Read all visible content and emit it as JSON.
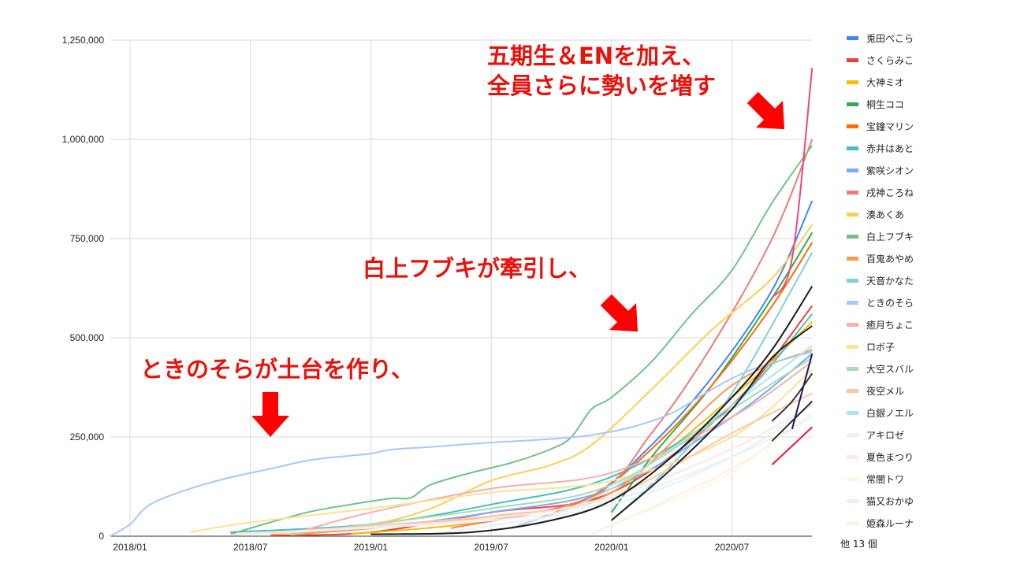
{
  "chart_data": {
    "type": "line",
    "title": "",
    "xlabel": "",
    "ylabel": "",
    "x_ticks": [
      "2018/01",
      "2018/07",
      "2019/01",
      "2019/07",
      "2020/01",
      "2020/07"
    ],
    "y_ticks": [
      0,
      250000,
      500000,
      750000,
      1000000,
      1250000
    ],
    "y_tick_labels": [
      "0",
      "250,000",
      "500,000",
      "750,000",
      "1,000,000",
      "1,250,000"
    ],
    "ylim": [
      0,
      1250000
    ],
    "xlim": [
      "2017/12",
      "2020/11"
    ],
    "grid": true,
    "legend_position": "right",
    "legend_more": "他 13 個",
    "series": [
      {
        "name": "兎田ぺこら",
        "color": "#4285f4",
        "points": [
          [
            "2019/08",
            20000
          ],
          [
            "2019/12",
            100000
          ],
          [
            "2020/03",
            230000
          ],
          [
            "2020/06",
            400000
          ],
          [
            "2020/09",
            620000
          ],
          [
            "2020/11",
            845000
          ]
        ]
      },
      {
        "name": "さくらみこ",
        "color": "#ea4335",
        "points": [
          [
            "2018/08",
            2000
          ],
          [
            "2019/01",
            10000
          ],
          [
            "2019/07",
            60000
          ],
          [
            "2020/01",
            110000
          ],
          [
            "2020/07",
            330000
          ],
          [
            "2020/11",
            580000
          ]
        ]
      },
      {
        "name": "大神ミオ",
        "color": "#fbbc04",
        "points": [
          [
            "2018/12",
            5000
          ],
          [
            "2019/07",
            40000
          ],
          [
            "2020/01",
            120000
          ],
          [
            "2020/07",
            350000
          ],
          [
            "2020/11",
            540000
          ]
        ]
      },
      {
        "name": "桐生ココ",
        "color": "#34a853",
        "points": [
          [
            "2020/01",
            60000
          ],
          [
            "2020/03",
            200000
          ],
          [
            "2020/06",
            380000
          ],
          [
            "2020/09",
            600000
          ],
          [
            "2020/11",
            765000
          ]
        ]
      },
      {
        "name": "宝鐘マリン",
        "color": "#ff6d01",
        "points": [
          [
            "2019/08",
            20000
          ],
          [
            "2019/12",
            100000
          ],
          [
            "2020/03",
            220000
          ],
          [
            "2020/06",
            380000
          ],
          [
            "2020/09",
            580000
          ],
          [
            "2020/11",
            740000
          ]
        ]
      },
      {
        "name": "赤井はあと",
        "color": "#46bdc6",
        "points": [
          [
            "2018/06",
            10000
          ],
          [
            "2019/01",
            30000
          ],
          [
            "2019/07",
            80000
          ],
          [
            "2020/01",
            150000
          ],
          [
            "2020/07",
            330000
          ],
          [
            "2020/11",
            560000
          ]
        ]
      },
      {
        "name": "紫咲シオン",
        "color": "#7baaf7",
        "points": [
          [
            "2018/09",
            5000
          ],
          [
            "2019/01",
            20000
          ],
          [
            "2019/07",
            60000
          ],
          [
            "2020/01",
            120000
          ],
          [
            "2020/07",
            300000
          ],
          [
            "2020/11",
            460000
          ]
        ]
      },
      {
        "name": "戌神ころね",
        "color": "#f07b72",
        "points": [
          [
            "2019/05",
            20000
          ],
          [
            "2019/12",
            100000
          ],
          [
            "2020/03",
            260000
          ],
          [
            "2020/06",
            480000
          ],
          [
            "2020/09",
            750000
          ],
          [
            "2020/11",
            1000000
          ]
        ]
      },
      {
        "name": "湊あくあ",
        "color": "#fcd04f",
        "points": [
          [
            "2018/08",
            5000
          ],
          [
            "2019/01",
            30000
          ],
          [
            "2019/04",
            70000
          ],
          [
            "2019/07",
            140000
          ],
          [
            "2019/10",
            180000
          ],
          [
            "2019/12",
            230000
          ],
          [
            "2020/03",
            370000
          ],
          [
            "2020/06",
            520000
          ],
          [
            "2020/09",
            650000
          ],
          [
            "2020/11",
            785000
          ]
        ]
      },
      {
        "name": "白上フブキ",
        "color": "#71c287",
        "points": [
          [
            "2018/06",
            5000
          ],
          [
            "2018/08",
            35000
          ],
          [
            "2018/10",
            62000
          ],
          [
            "2018/12",
            80000
          ],
          [
            "2019/02",
            95000
          ],
          [
            "2019/03",
            97000
          ],
          [
            "2019/04",
            130000
          ],
          [
            "2019/06",
            160000
          ],
          [
            "2019/08",
            185000
          ],
          [
            "2019/10",
            220000
          ],
          [
            "2019/11",
            250000
          ],
          [
            "2019/12",
            320000
          ],
          [
            "2020/01",
            350000
          ],
          [
            "2020/03",
            440000
          ],
          [
            "2020/05",
            560000
          ],
          [
            "2020/07",
            670000
          ],
          [
            "2020/09",
            840000
          ],
          [
            "2020/11",
            985000
          ]
        ]
      },
      {
        "name": "百鬼あやめ",
        "color": "#ff994d",
        "points": [
          [
            "2018/09",
            3000
          ],
          [
            "2019/07",
            50000
          ],
          [
            "2020/01",
            110000
          ],
          [
            "2020/07",
            380000
          ],
          [
            "2020/11",
            470000
          ]
        ]
      },
      {
        "name": "天音かなた",
        "color": "#7ed1d7",
        "points": [
          [
            "2020/01",
            40000
          ],
          [
            "2020/04",
            180000
          ],
          [
            "2020/07",
            360000
          ],
          [
            "2020/11",
            715000
          ]
        ]
      },
      {
        "name": "ときのそら",
        "color": "#a8c7fa",
        "points": [
          [
            "2017/12",
            0
          ],
          [
            "2018/01",
            30000
          ],
          [
            "2018/02",
            80000
          ],
          [
            "2018/04",
            120000
          ],
          [
            "2018/06",
            148000
          ],
          [
            "2018/08",
            170000
          ],
          [
            "2018/10",
            192000
          ],
          [
            "2018/12",
            203000
          ],
          [
            "2019/01",
            208000
          ],
          [
            "2019/02",
            218000
          ],
          [
            "2019/04",
            225000
          ],
          [
            "2019/07",
            236000
          ],
          [
            "2019/10",
            245000
          ],
          [
            "2019/12",
            255000
          ],
          [
            "2020/02",
            275000
          ],
          [
            "2020/04",
            310000
          ],
          [
            "2020/06",
            370000
          ],
          [
            "2020/08",
            420000
          ],
          [
            "2020/11",
            465000
          ]
        ]
      },
      {
        "name": "癒月ちょこ",
        "color": "#f5b1ac",
        "points": [
          [
            "2018/09",
            5000
          ],
          [
            "2019/01",
            60000
          ],
          [
            "2019/07",
            120000
          ],
          [
            "2020/01",
            160000
          ],
          [
            "2020/07",
            300000
          ],
          [
            "2020/11",
            440000
          ]
        ]
      },
      {
        "name": "ロボ子",
        "color": "#fde293",
        "points": [
          [
            "2018/04",
            10000
          ],
          [
            "2018/07",
            35000
          ],
          [
            "2019/01",
            70000
          ],
          [
            "2019/07",
            110000
          ],
          [
            "2020/01",
            140000
          ],
          [
            "2020/07",
            250000
          ],
          [
            "2020/11",
            420000
          ]
        ]
      },
      {
        "name": "大空スバル",
        "color": "#a8dab5",
        "points": [
          [
            "2018/09",
            5000
          ],
          [
            "2019/07",
            70000
          ],
          [
            "2020/01",
            130000
          ],
          [
            "2020/07",
            320000
          ],
          [
            "2020/11",
            450000
          ]
        ]
      },
      {
        "name": "夜空メル",
        "color": "#fcc8a4",
        "points": [
          [
            "2018/06",
            3000
          ],
          [
            "2019/07",
            50000
          ],
          [
            "2020/01",
            100000
          ],
          [
            "2020/07",
            260000
          ],
          [
            "2020/11",
            360000
          ]
        ]
      },
      {
        "name": "白銀ノエル",
        "color": "#b3e5e8",
        "points": [
          [
            "2019/08",
            20000
          ],
          [
            "2020/01",
            120000
          ],
          [
            "2020/07",
            330000
          ],
          [
            "2020/11",
            480000
          ]
        ]
      },
      {
        "name": "アキロゼ",
        "color": "#e8f0fe",
        "points": [
          [
            "2018/06",
            3000
          ],
          [
            "2019/07",
            40000
          ],
          [
            "2020/01",
            90000
          ],
          [
            "2020/07",
            200000
          ],
          [
            "2020/11",
            300000
          ]
        ]
      },
      {
        "name": "夏色まつり",
        "color": "#fce8e6",
        "points": [
          [
            "2018/06",
            3000
          ],
          [
            "2019/07",
            45000
          ],
          [
            "2020/01",
            100000
          ],
          [
            "2020/07",
            220000
          ],
          [
            "2020/11",
            330000
          ]
        ]
      },
      {
        "name": "常闇トワ",
        "color": "#fef7e0",
        "points": [
          [
            "2020/01",
            30000
          ],
          [
            "2020/07",
            160000
          ],
          [
            "2020/11",
            340000
          ]
        ]
      },
      {
        "name": "猫又おかゆ",
        "color": "#e6f4ea",
        "points": [
          [
            "2019/04",
            5000
          ],
          [
            "2020/01",
            80000
          ],
          [
            "2020/07",
            200000
          ],
          [
            "2020/11",
            330000
          ]
        ]
      },
      {
        "name": "姫森ルーナ",
        "color": "#feefe3",
        "points": [
          [
            "2019/12",
            5000
          ],
          [
            "2020/07",
            170000
          ],
          [
            "2020/11",
            310000
          ]
        ]
      },
      {
        "color": "#f0477a",
        "points": [
          [
            "2020/09",
            600000
          ],
          [
            "2020/10",
            700000
          ],
          [
            "2020/11",
            1180000
          ]
        ]
      },
      {
        "color": "#e8192c",
        "points": [
          [
            "2020/09",
            180000
          ],
          [
            "2020/11",
            275000
          ]
        ]
      },
      {
        "color": "#1a1a1a",
        "points": [
          [
            "2019/01",
            5000
          ],
          [
            "2019/06",
            10000
          ],
          [
            "2019/10",
            40000
          ],
          [
            "2020/01",
            90000
          ],
          [
            "2020/04",
            200000
          ],
          [
            "2020/07",
            350000
          ],
          [
            "2020/09",
            470000
          ],
          [
            "2020/11",
            630000
          ]
        ]
      },
      {
        "color": "#222222",
        "points": [
          [
            "2020/01",
            40000
          ],
          [
            "2020/04",
            170000
          ],
          [
            "2020/07",
            320000
          ],
          [
            "2020/09",
            450000
          ],
          [
            "2020/11",
            530000
          ]
        ]
      },
      {
        "color": "#2c2c2c",
        "points": [
          [
            "2020/09",
            240000
          ],
          [
            "2020/11",
            340000
          ]
        ]
      },
      {
        "color": "#1b1b5e",
        "points": [
          [
            "2020/10",
            270000
          ],
          [
            "2020/11",
            460000
          ]
        ]
      },
      {
        "color": "#333333",
        "points": [
          [
            "2020/09",
            290000
          ],
          [
            "2020/10",
            340000
          ],
          [
            "2020/11",
            410000
          ]
        ]
      }
    ]
  },
  "annotations": [
    {
      "text": "ときのそらが土台を作り、"
    },
    {
      "text": "白上フブキが牽引し、"
    },
    {
      "text": "五期生＆ENを加え、"
    },
    {
      "text": "全員さらに勢いを増す"
    }
  ],
  "colors": {
    "annotation": "#e8120c",
    "arrow": "#ff0000"
  }
}
